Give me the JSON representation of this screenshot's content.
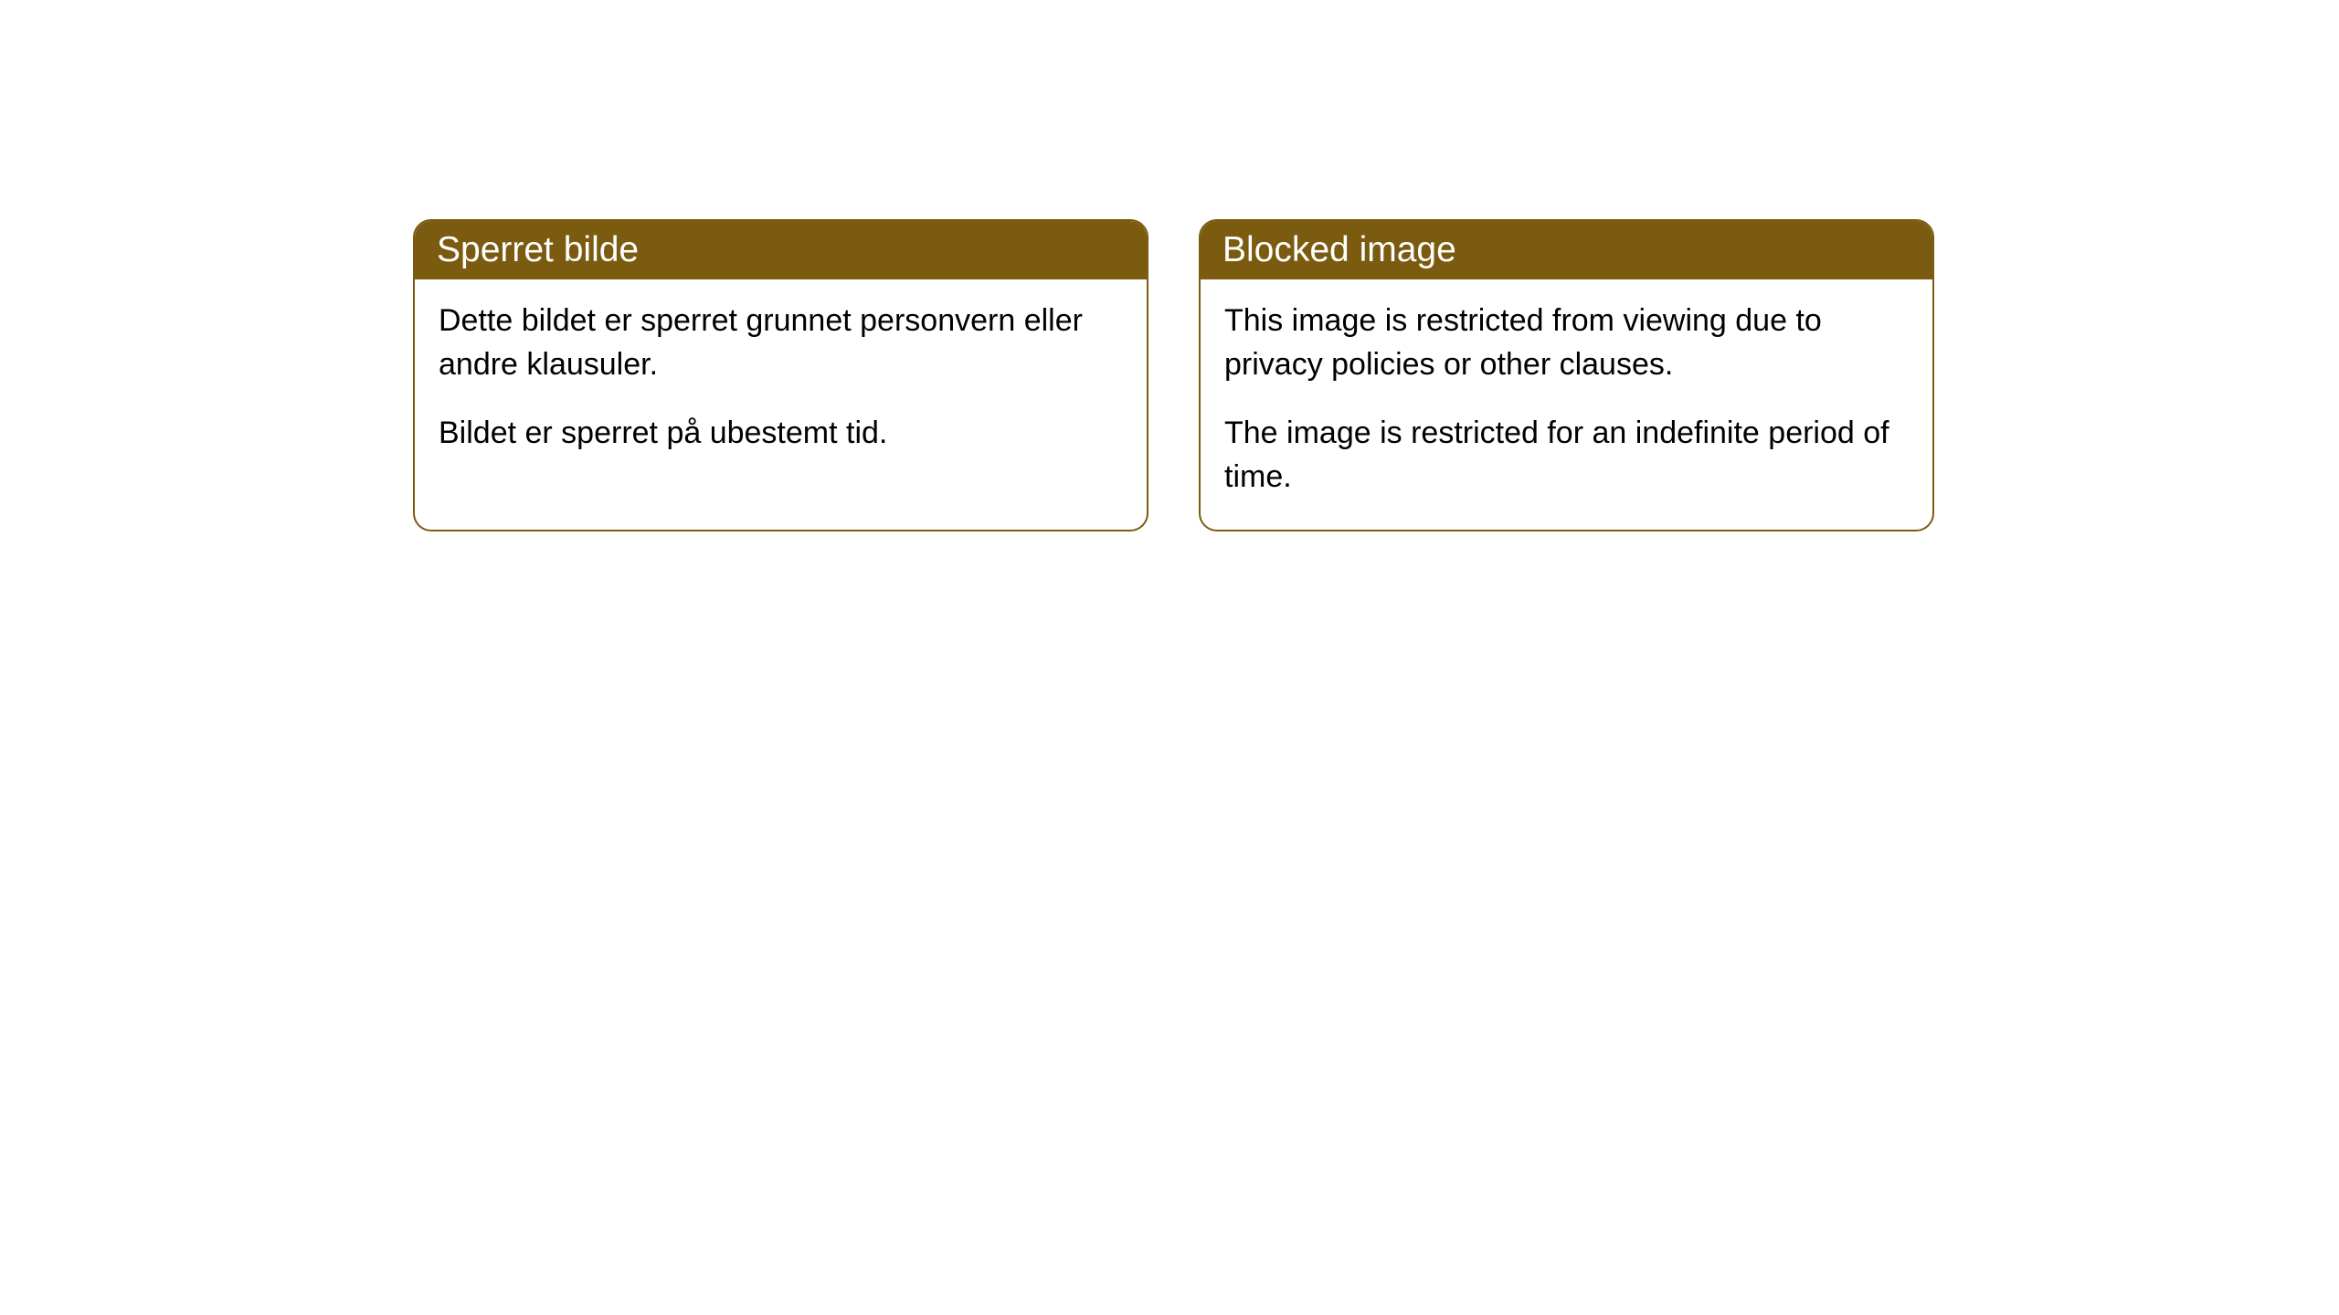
{
  "cards": [
    {
      "title": "Sperret bilde",
      "paragraph1": "Dette bildet er sperret grunnet personvern eller andre klausuler.",
      "paragraph2": "Bildet er sperret på ubestemt tid."
    },
    {
      "title": "Blocked image",
      "paragraph1": "This image is restricted from viewing due to privacy policies or other clauses.",
      "paragraph2": "The image is restricted for an indefinite period of time."
    }
  ],
  "styling": {
    "header_background_color": "#7a5b0f",
    "header_text_color": "#ffffff",
    "body_background_color": "#ffffff",
    "body_text_color": "#000000",
    "border_color": "#7a5b0f",
    "border_radius": 20,
    "header_fontsize": 39,
    "body_fontsize": 34
  }
}
